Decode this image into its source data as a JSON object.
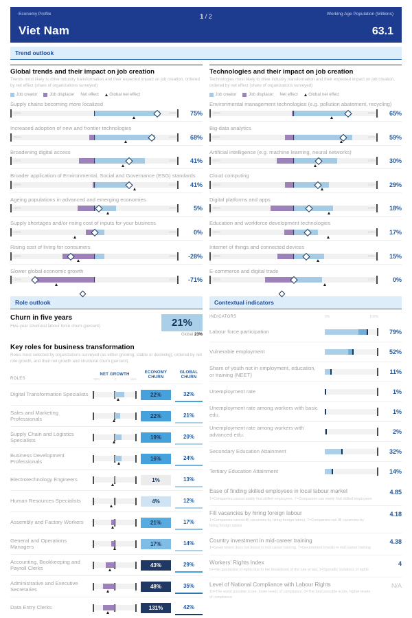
{
  "header": {
    "kicker": "Economy Profile",
    "title": "Viet Nam",
    "page_current": "1",
    "page_rest": " / 2",
    "wap_label": "Working Age Population (Millions)",
    "wap_value": "63.1"
  },
  "bands": {
    "trend": "Trend outlook",
    "role": "Role outlook",
    "contextual": "Contextual indicators"
  },
  "legend": [
    {
      "label": "Job creator",
      "type": "square",
      "color": "#a5cae4"
    },
    {
      "label": "Job displacer",
      "type": "square",
      "color": "#9c82b8"
    },
    {
      "label": "Net effect",
      "type": "diamond"
    },
    {
      "label": "Global net effect",
      "type": "dot"
    }
  ],
  "colors": {
    "header_navy": "#1e3c8f",
    "job_creator": "#a5cae4",
    "job_displacer": "#9c82b8",
    "net_diamond_border": "#17365d",
    "value_navy": "#235a9e",
    "band_bg": "#ddedf9"
  },
  "trend_columns": [
    {
      "title": "Global trends and their impact on job creation",
      "subtitle": "Trends most likely to drive industry transformation and their expected impact on job creation, ordered by net effect (share of organizations surveyed)",
      "scale_min": "-100%",
      "scale_max": "100%",
      "items": [
        {
          "label": "Supply chains becoming more localized",
          "value": "75%",
          "creator": 78,
          "displacer": 0,
          "net": 75,
          "global": 47
        },
        {
          "label": "Increased adoption of new and frontier technologies",
          "value": "68%",
          "creator": 72,
          "displacer": 6,
          "net": 68,
          "global": 37
        },
        {
          "label": "Broadening digital access",
          "value": "41%",
          "creator": 60,
          "displacer": 18,
          "net": 41,
          "global": 34
        },
        {
          "label": "Broader application of Environmental, Social and Governance (ESG) standards",
          "value": "41%",
          "creator": 42,
          "displacer": 2,
          "net": 41,
          "global": 48
        },
        {
          "label": "Ageing populations in advanced and emerging economies",
          "value": "5%",
          "creator": 26,
          "displacer": 20,
          "net": 5,
          "global": 16
        },
        {
          "label": "Supply shortages and/or rising cost of inputs for your business",
          "value": "0%",
          "creator": 12,
          "displacer": 10,
          "net": 0,
          "global": -23
        },
        {
          "label": "Rising cost of living for consumers",
          "value": "-28%",
          "creator": 12,
          "displacer": 38,
          "net": -28,
          "global": -19
        },
        {
          "label": "Slower global economic growth",
          "value": "-71%",
          "creator": 0,
          "displacer": 70,
          "net": -71,
          "global": -45
        }
      ]
    },
    {
      "title": "Technologies and their impact on job creation",
      "subtitle": "Technologies most likely to drive industry transformation and their expected impact on job creation, ordered by net effect (share of organizations surveyed)",
      "scale_min": "-100%",
      "scale_max": "100%",
      "items": [
        {
          "label": "Environmental management technologies (e.g. pollution abatement, recycling)",
          "value": "65%",
          "creator": 68,
          "displacer": 2,
          "net": 65,
          "global": 45
        },
        {
          "label": "Big-data analytics",
          "value": "59%",
          "creator": 70,
          "displacer": 10,
          "net": 59,
          "global": 57
        },
        {
          "label": "Artificial intelligence (e.g. machine learning, neural networks)",
          "value": "30%",
          "creator": 52,
          "displacer": 20,
          "net": 30,
          "global": 26
        },
        {
          "label": "Cloud computing",
          "value": "29%",
          "creator": 42,
          "displacer": 10,
          "net": 29,
          "global": 34
        },
        {
          "label": "Digital platforms and apps",
          "value": "18%",
          "creator": 47,
          "displacer": 27,
          "net": 18,
          "global": 42
        },
        {
          "label": "Education and workforce development technologies",
          "value": "17%",
          "creator": 29,
          "displacer": 11,
          "net": 17,
          "global": 41
        },
        {
          "label": "Internet of things and connected devices",
          "value": "15%",
          "creator": 36,
          "displacer": 19,
          "net": 15,
          "global": 29
        },
        {
          "label": "E-commerce and digital trade",
          "value": "0%",
          "creator": 34,
          "displacer": 34,
          "net": 0,
          "global": 37
        }
      ]
    }
  ],
  "role_outlook": {
    "churn_title": "Churn in five years",
    "churn_sub": "Five-year structural labour force churn (percent)",
    "churn_value": "21%",
    "churn_global_label": "Global",
    "churn_global_value": "23%",
    "keyroles_title": "Key roles for business transformation",
    "keyroles_sub": "Roles most selected by organizations surveyed (as either growing, stable or declining), ordered by net role growth, and their net growth and structural churn (percent)",
    "col_roles": "ROLES",
    "col_growth": "NET GROWTH",
    "growth_scale": [
      "-50%",
      "0",
      "50%"
    ],
    "col_economy_1": "ECONOMY",
    "col_economy_2": "CHURN",
    "col_global_1": "GLOBAL",
    "col_global_2": "CHURN",
    "rows": [
      {
        "name": "Digital Transformation Specialists",
        "growth": 22,
        "marker": 8,
        "churn": "22%",
        "churn_bg": "#45a1dc",
        "churn_fg": "#17365d",
        "global": "32%",
        "global_color": "#45a1dc"
      },
      {
        "name": "Sales and Marketing Professionals",
        "growth": 13,
        "marker": -2,
        "churn": "22%",
        "churn_bg": "#45a1dc",
        "churn_fg": "#17365d",
        "global": "21%",
        "global_color": "#a9cfe9"
      },
      {
        "name": "Supply Chain and Logistics Specialists",
        "growth": 15,
        "marker": -1,
        "churn": "19%",
        "churn_bg": "#45a1dc",
        "churn_fg": "#17365d",
        "global": "20%",
        "global_color": "#a9cfe9"
      },
      {
        "name": "Business Development Professionals",
        "growth": 16,
        "marker": 10,
        "churn": "16%",
        "churn_bg": "#45a1dc",
        "churn_fg": "#17365d",
        "global": "24%",
        "global_color": "#6fb3e0"
      },
      {
        "name": "Electrotechnology Engineers",
        "growth": 1,
        "marker": -5,
        "churn": "1%",
        "churn_bg": "#ececec",
        "churn_fg": "#17365d",
        "global": "13%",
        "global_color": "#a9cfe9"
      },
      {
        "name": "Human Resources Specialists",
        "growth": 0,
        "marker": -8,
        "churn": "4%",
        "churn_bg": "#cfe3f2",
        "churn_fg": "#17365d",
        "global": "12%",
        "global_color": "#a9cfe9"
      },
      {
        "name": "Assembly and Factory Workers",
        "growth": -8,
        "marker": -5,
        "churn": "21%",
        "churn_bg": "#58abdf",
        "churn_fg": "#17365d",
        "global": "17%",
        "global_color": "#8cc1e6"
      },
      {
        "name": "General and Operations Managers",
        "growth": -8,
        "marker": 0,
        "churn": "17%",
        "churn_bg": "#7fbce6",
        "churn_fg": "#17365d",
        "global": "14%",
        "global_color": "#a9cfe9"
      },
      {
        "name": "Accounting, Bookkeeping and Payroll Clerks",
        "growth": -20,
        "marker": -11,
        "churn": "43%",
        "churn_bg": "#1f3864",
        "churn_fg": "#ffffff",
        "global": "29%",
        "global_color": "#45a1dc"
      },
      {
        "name": "Administrative and Executive Secretaries",
        "growth": -26,
        "marker": -15,
        "churn": "48%",
        "churn_bg": "#1f3864",
        "churn_fg": "#ffffff",
        "global": "35%",
        "global_color": "#2e75b6"
      },
      {
        "name": "Data Entry Clerks",
        "growth": -27,
        "marker": -16,
        "churn": "131%",
        "churn_bg": "#1f3864",
        "churn_fg": "#ffffff",
        "global": "42%",
        "global_color": "#1f3864"
      }
    ]
  },
  "contextual": {
    "col_label": "INDICATORS",
    "scale_min": "0%",
    "scale_max": "100%",
    "bars": [
      {
        "name": "Labour force participation",
        "value": "79%",
        "pct": 79,
        "global": 63
      },
      {
        "name": "Vulnerable employment",
        "value": "52%",
        "pct": 52,
        "global": 44
      },
      {
        "name": "Share of youth not in employment, education, or training (NEET)",
        "value": "11%",
        "pct": 11,
        "global": null
      },
      {
        "name": "Unemployment rate",
        "value": "1%",
        "pct": 1,
        "global": null
      },
      {
        "name": "Unemployment rate among workers with basic edu.",
        "value": "1%",
        "pct": 1,
        "global": null
      },
      {
        "name": "Unemployment rate among workers with advanced edu.",
        "value": "2%",
        "pct": 2,
        "global": null
      },
      {
        "name": "Secondary Education Attainment",
        "value": "32%",
        "pct": 32,
        "global": null
      },
      {
        "name": "Tertiary Education Attainment",
        "value": "14%",
        "pct": 14,
        "global": null
      }
    ],
    "scores": [
      {
        "name": "Ease of finding skilled employees in local labour market",
        "sub": "1=Companies cannot easily find skilled employees, 7=Companies can easily find skilled employees",
        "value": "4.85",
        "muted": false
      },
      {
        "name": "Fill vacancies by hiring foreign labour",
        "sub": "1=Companies cannot fill vacancies by hiring foreign labour, 7=Companies can fill vacancies by hiring foreign labour",
        "value": "4.18",
        "muted": false
      },
      {
        "name": "Country investment in mid-career training",
        "sub": "1=Government does not invest in mid-career training, 7=Government invests in mid-career training",
        "value": "4.38",
        "muted": false
      },
      {
        "name": "Workers' Rights Index",
        "sub": "5+=No guarantee of rights due to the breakdown of the rule of law, 1=Sporadic violations of rights",
        "value": "4",
        "muted": false
      },
      {
        "name": "Level of National Compliance with Labour Rights",
        "sub": "10=The worst possible score, lower levels of compliance, 0=The best possible score, higher levels of compliance",
        "value": "N/A",
        "muted": true
      }
    ]
  }
}
